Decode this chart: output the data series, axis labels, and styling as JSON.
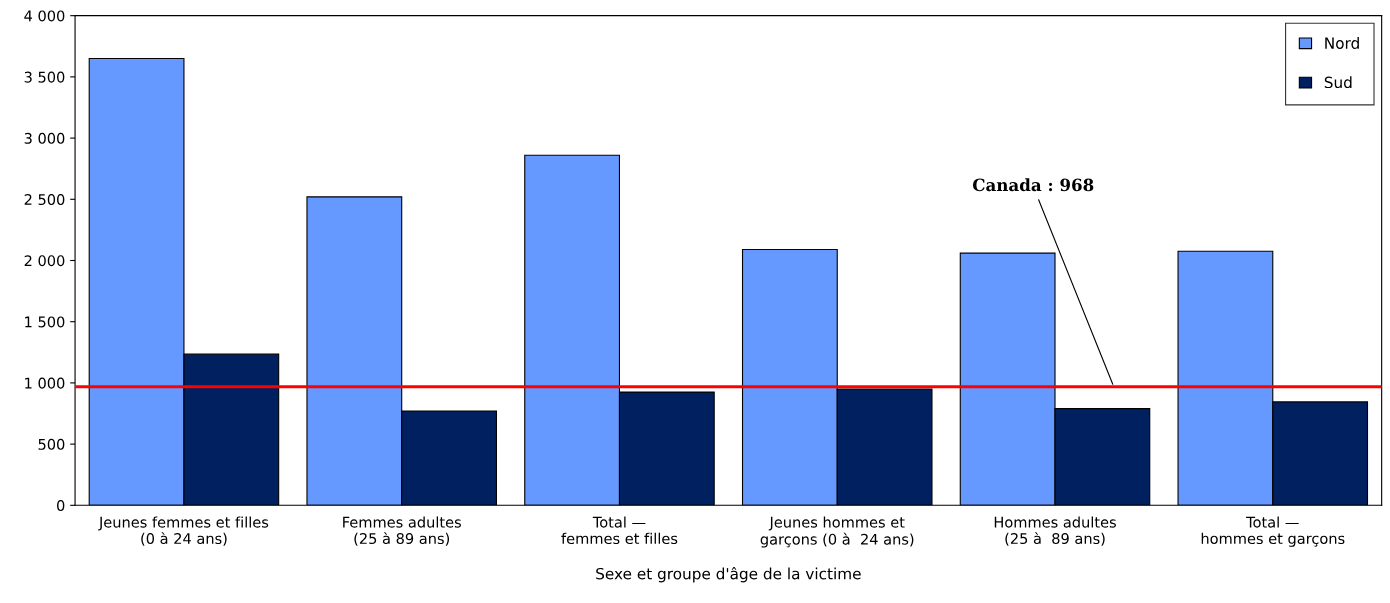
{
  "chart_data": {
    "type": "bar",
    "xlabel": "Sexe et groupe d'âge de la victime",
    "categories": [
      "Jeunes femmes et filles\n(0 à 24 ans)",
      "Femmes adultes\n(25 à 89 ans)",
      "Total —\nfemmes et filles",
      "Jeunes hommes et\ngarçons (0 à  24 ans)",
      "Hommes adultes\n(25 à  89 ans)",
      "Total —\nhommes et garçons"
    ],
    "series": [
      {
        "name": "Nord",
        "color": "#6699ff",
        "values": [
          3650,
          2520,
          2860,
          2090,
          2060,
          2075
        ]
      },
      {
        "name": "Sud",
        "color": "#002060",
        "values": [
          1235,
          770,
          925,
          950,
          790,
          845
        ]
      }
    ],
    "ylim": [
      0,
      4000
    ],
    "yticks": [
      0,
      500,
      {
        "value": 1000,
        "label": "1 000"
      },
      {
        "value": 1500,
        "label": "1 500"
      },
      {
        "value": 2000,
        "label": "2 000"
      },
      {
        "value": 2500,
        "label": "2 500"
      },
      {
        "value": 3000,
        "label": "3 000"
      },
      {
        "value": 3500,
        "label": "3 500"
      },
      {
        "value": 4000,
        "label": "4 000"
      }
    ],
    "ref_lines": [
      {
        "axis": "y",
        "value": 968,
        "label": "Canada : 968",
        "color": "#ff0000",
        "line_style": "solid"
      }
    ],
    "legend": "top right",
    "grid": false
  }
}
